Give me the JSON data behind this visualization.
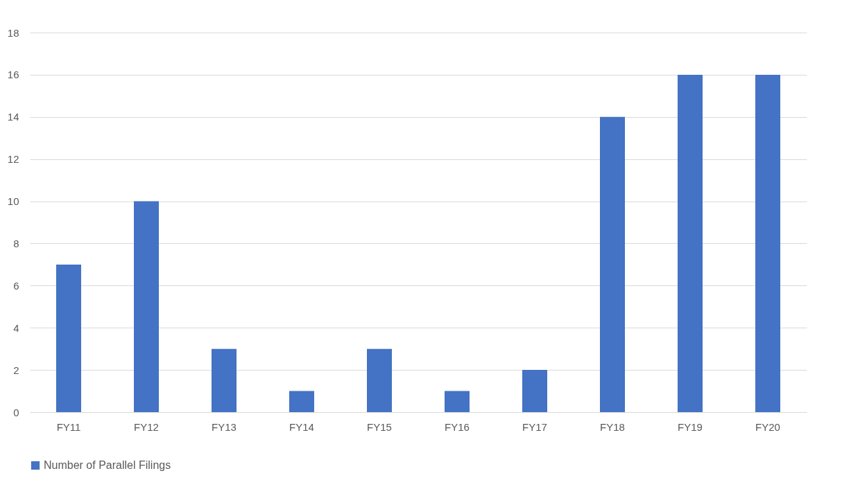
{
  "chart_data": {
    "type": "bar",
    "categories": [
      "FY11",
      "FY12",
      "FY13",
      "FY14",
      "FY15",
      "FY16",
      "FY17",
      "FY18",
      "FY19",
      "FY20"
    ],
    "series": [
      {
        "name": "Number of Parallel Filings",
        "color": "#4472c4",
        "values": [
          7,
          10,
          3,
          1,
          3,
          1,
          2,
          14,
          16,
          16
        ]
      }
    ],
    "ylim": [
      0,
      18
    ],
    "yticks": [
      0,
      2,
      4,
      6,
      8,
      10,
      12,
      14,
      16,
      18
    ],
    "grid": "y",
    "legend": "bottom"
  }
}
